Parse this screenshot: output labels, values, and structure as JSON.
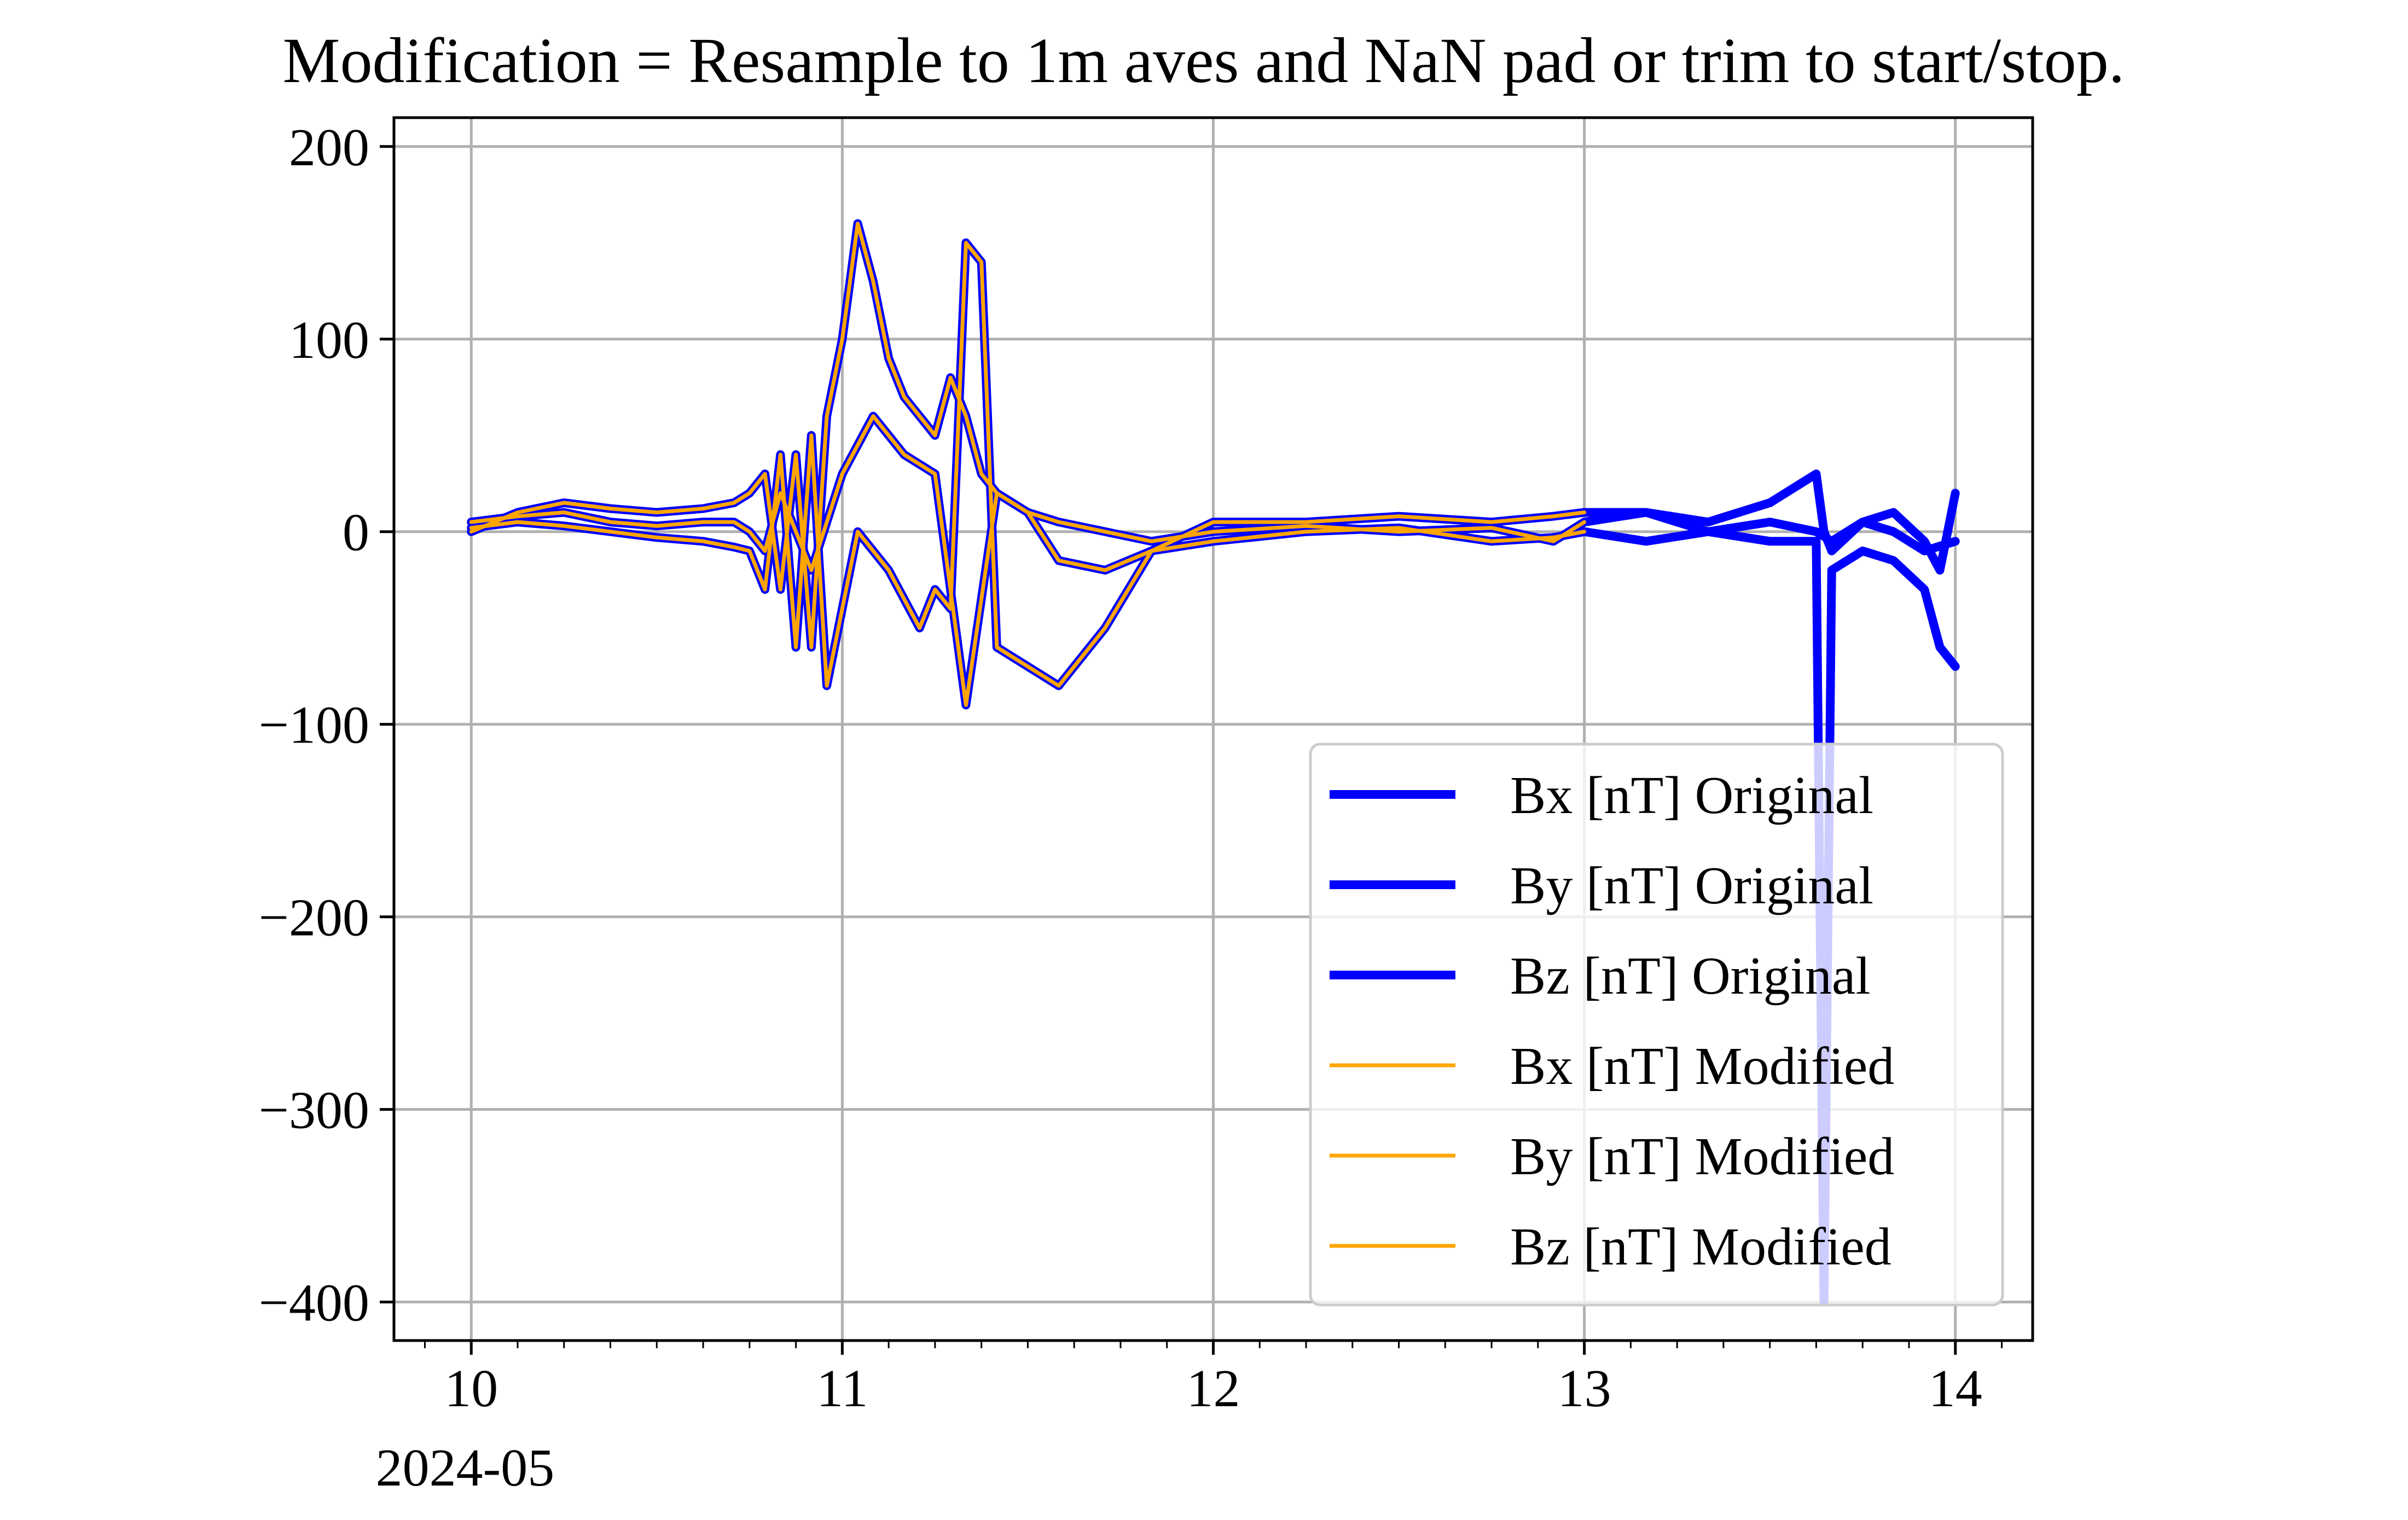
{
  "chart_data": {
    "type": "line",
    "title": "Modification = Resample to 1m aves and NaN pad or trim to start/stop.",
    "xlabel": "",
    "ylabel": "",
    "x_axis_kind": "date",
    "xlim": [
      "2024-05-09T19:00",
      "2024-05-14T05:00"
    ],
    "ylim": [
      -420,
      215
    ],
    "x_ticks": [
      {
        "value": "2024-05-10",
        "label": "10"
      },
      {
        "value": "2024-05-11",
        "label": "11"
      },
      {
        "value": "2024-05-12",
        "label": "12"
      },
      {
        "value": "2024-05-13",
        "label": "13"
      },
      {
        "value": "2024-05-14",
        "label": "14"
      }
    ],
    "x_offset_label": "2024-05",
    "y_ticks": [
      {
        "value": 200,
        "label": "200"
      },
      {
        "value": 100,
        "label": "100"
      },
      {
        "value": 0,
        "label": "0"
      },
      {
        "value": -100,
        "label": "−100"
      },
      {
        "value": -200,
        "label": "−200"
      },
      {
        "value": -300,
        "label": "−300"
      },
      {
        "value": -400,
        "label": "−400"
      }
    ],
    "grid": true,
    "legend_position": "lower-right",
    "colors": {
      "original": "#0000ff",
      "modified": "#ffa500"
    },
    "series": [
      {
        "name": "Bx [nT] Original",
        "color": "#0000ff",
        "style": "thick",
        "x": [
          "2024-05-10T00:00",
          "2024-05-10T03:00",
          "2024-05-10T06:00",
          "2024-05-10T09:00",
          "2024-05-10T12:00",
          "2024-05-10T15:00",
          "2024-05-10T17:00",
          "2024-05-10T18:00",
          "2024-05-10T19:00",
          "2024-05-10T20:00",
          "2024-05-10T21:00",
          "2024-05-10T22:00",
          "2024-05-10T23:00",
          "2024-05-11T00:00",
          "2024-05-11T01:00",
          "2024-05-11T02:00",
          "2024-05-11T03:00",
          "2024-05-11T04:00",
          "2024-05-11T05:00",
          "2024-05-11T06:00",
          "2024-05-11T07:00",
          "2024-05-11T08:00",
          "2024-05-11T09:00",
          "2024-05-11T10:00",
          "2024-05-11T12:00",
          "2024-05-11T14:00",
          "2024-05-11T17:00",
          "2024-05-11T20:00",
          "2024-05-12T00:00",
          "2024-05-12T06:00",
          "2024-05-12T12:00",
          "2024-05-12T18:00",
          "2024-05-12T22:00",
          "2024-05-13T00:00",
          "2024-05-13T04:00",
          "2024-05-13T08:00",
          "2024-05-13T12:00",
          "2024-05-13T14:00",
          "2024-05-13T15:00",
          "2024-05-13T15:30",
          "2024-05-13T16:00",
          "2024-05-13T18:00",
          "2024-05-13T20:00",
          "2024-05-13T22:00",
          "2024-05-13T23:00",
          "2024-05-14T00:00"
        ],
        "y": [
          0,
          10,
          15,
          12,
          10,
          12,
          15,
          20,
          30,
          -30,
          40,
          -60,
          60,
          100,
          160,
          130,
          90,
          70,
          60,
          50,
          80,
          60,
          30,
          20,
          10,
          -15,
          -20,
          -10,
          5,
          5,
          8,
          5,
          8,
          10,
          10,
          5,
          15,
          25,
          30,
          0,
          -10,
          5,
          10,
          -5,
          -20,
          20
        ]
      },
      {
        "name": "By [nT] Original",
        "color": "#0000ff",
        "style": "thick",
        "x": [
          "2024-05-10T00:00",
          "2024-05-10T03:00",
          "2024-05-10T06:00",
          "2024-05-10T09:00",
          "2024-05-10T12:00",
          "2024-05-10T15:00",
          "2024-05-10T17:00",
          "2024-05-10T18:00",
          "2024-05-10T19:00",
          "2024-05-10T20:00",
          "2024-05-10T21:00",
          "2024-05-10T22:00",
          "2024-05-10T23:00",
          "2024-05-11T01:00",
          "2024-05-11T03:00",
          "2024-05-11T05:00",
          "2024-05-11T06:00",
          "2024-05-11T07:00",
          "2024-05-11T08:00",
          "2024-05-11T09:00",
          "2024-05-11T10:00",
          "2024-05-11T12:00",
          "2024-05-11T14:00",
          "2024-05-11T17:00",
          "2024-05-11T20:00",
          "2024-05-12T00:00",
          "2024-05-12T06:00",
          "2024-05-12T12:00",
          "2024-05-12T18:00",
          "2024-05-12T22:00",
          "2024-05-13T00:00",
          "2024-05-13T04:00",
          "2024-05-13T08:00",
          "2024-05-13T12:00",
          "2024-05-13T15:00",
          "2024-05-13T15:30",
          "2024-05-13T16:00",
          "2024-05-13T18:00",
          "2024-05-13T20:00",
          "2024-05-13T22:00",
          "2024-05-13T23:00",
          "2024-05-14T00:00"
        ],
        "y": [
          2,
          5,
          3,
          0,
          -3,
          -5,
          -8,
          -10,
          -30,
          40,
          -60,
          50,
          -80,
          0,
          -20,
          -50,
          -30,
          -40,
          150,
          140,
          -60,
          -70,
          -80,
          -50,
          -10,
          -5,
          0,
          2,
          -5,
          -3,
          0,
          -5,
          0,
          -5,
          -5,
          -400,
          -20,
          -10,
          -15,
          -30,
          -60,
          -70
        ]
      },
      {
        "name": "Bz [nT] Original",
        "color": "#0000ff",
        "style": "thick",
        "x": [
          "2024-05-10T00:00",
          "2024-05-10T03:00",
          "2024-05-10T06:00",
          "2024-05-10T09:00",
          "2024-05-10T12:00",
          "2024-05-10T15:00",
          "2024-05-10T17:00",
          "2024-05-10T18:00",
          "2024-05-10T19:00",
          "2024-05-10T20:00",
          "2024-05-10T22:00",
          "2024-05-11T00:00",
          "2024-05-11T02:00",
          "2024-05-11T04:00",
          "2024-05-11T06:00",
          "2024-05-11T08:00",
          "2024-05-11T10:00",
          "2024-05-11T12:00",
          "2024-05-11T14:00",
          "2024-05-11T17:00",
          "2024-05-11T20:00",
          "2024-05-12T00:00",
          "2024-05-12T06:00",
          "2024-05-12T12:00",
          "2024-05-12T18:00",
          "2024-05-12T22:00",
          "2024-05-13T00:00",
          "2024-05-13T04:00",
          "2024-05-13T08:00",
          "2024-05-13T12:00",
          "2024-05-13T15:00",
          "2024-05-13T16:00",
          "2024-05-13T18:00",
          "2024-05-13T20:00",
          "2024-05-13T22:00",
          "2024-05-14T00:00"
        ],
        "y": [
          5,
          8,
          10,
          5,
          3,
          5,
          5,
          0,
          -10,
          20,
          -20,
          30,
          60,
          40,
          30,
          -90,
          20,
          10,
          5,
          0,
          -5,
          0,
          3,
          0,
          2,
          -5,
          5,
          10,
          0,
          5,
          0,
          -5,
          5,
          0,
          -10,
          -5
        ]
      },
      {
        "name": "Bx [nT] Modified",
        "color": "#ffa500",
        "style": "thin",
        "x": [
          "2024-05-10T00:00",
          "2024-05-10T03:00",
          "2024-05-10T06:00",
          "2024-05-10T09:00",
          "2024-05-10T12:00",
          "2024-05-10T15:00",
          "2024-05-10T17:00",
          "2024-05-10T18:00",
          "2024-05-10T19:00",
          "2024-05-10T20:00",
          "2024-05-10T21:00",
          "2024-05-10T22:00",
          "2024-05-10T23:00",
          "2024-05-11T00:00",
          "2024-05-11T01:00",
          "2024-05-11T02:00",
          "2024-05-11T03:00",
          "2024-05-11T04:00",
          "2024-05-11T05:00",
          "2024-05-11T06:00",
          "2024-05-11T07:00",
          "2024-05-11T08:00",
          "2024-05-11T09:00",
          "2024-05-11T10:00",
          "2024-05-11T12:00",
          "2024-05-11T14:00",
          "2024-05-11T17:00",
          "2024-05-11T20:00",
          "2024-05-12T00:00",
          "2024-05-12T06:00",
          "2024-05-12T12:00",
          "2024-05-12T18:00",
          "2024-05-12T22:00",
          "2024-05-13T00:00"
        ],
        "y": [
          0,
          10,
          15,
          12,
          10,
          12,
          15,
          20,
          30,
          -30,
          40,
          -60,
          60,
          100,
          160,
          130,
          90,
          70,
          60,
          50,
          80,
          60,
          30,
          20,
          10,
          -15,
          -20,
          -10,
          5,
          5,
          8,
          5,
          8,
          10
        ]
      },
      {
        "name": "By [nT] Modified",
        "color": "#ffa500",
        "style": "thin",
        "x": [
          "2024-05-10T00:00",
          "2024-05-10T03:00",
          "2024-05-10T06:00",
          "2024-05-10T09:00",
          "2024-05-10T12:00",
          "2024-05-10T15:00",
          "2024-05-10T17:00",
          "2024-05-10T18:00",
          "2024-05-10T19:00",
          "2024-05-10T20:00",
          "2024-05-10T21:00",
          "2024-05-10T22:00",
          "2024-05-10T23:00",
          "2024-05-11T01:00",
          "2024-05-11T03:00",
          "2024-05-11T05:00",
          "2024-05-11T06:00",
          "2024-05-11T07:00",
          "2024-05-11T08:00",
          "2024-05-11T09:00",
          "2024-05-11T10:00",
          "2024-05-11T12:00",
          "2024-05-11T14:00",
          "2024-05-11T17:00",
          "2024-05-11T20:00",
          "2024-05-12T00:00",
          "2024-05-12T06:00",
          "2024-05-12T12:00",
          "2024-05-12T18:00",
          "2024-05-12T22:00",
          "2024-05-13T00:00"
        ],
        "y": [
          2,
          5,
          3,
          0,
          -3,
          -5,
          -8,
          -10,
          -30,
          40,
          -60,
          50,
          -80,
          0,
          -20,
          -50,
          -30,
          -40,
          150,
          140,
          -60,
          -70,
          -80,
          -50,
          -10,
          -5,
          0,
          2,
          -5,
          -3,
          0
        ]
      },
      {
        "name": "Bz [nT] Modified",
        "color": "#ffa500",
        "style": "thin",
        "x": [
          "2024-05-10T00:00",
          "2024-05-10T03:00",
          "2024-05-10T06:00",
          "2024-05-10T09:00",
          "2024-05-10T12:00",
          "2024-05-10T15:00",
          "2024-05-10T17:00",
          "2024-05-10T18:00",
          "2024-05-10T19:00",
          "2024-05-10T20:00",
          "2024-05-10T22:00",
          "2024-05-11T00:00",
          "2024-05-11T02:00",
          "2024-05-11T04:00",
          "2024-05-11T06:00",
          "2024-05-11T08:00",
          "2024-05-11T10:00",
          "2024-05-11T12:00",
          "2024-05-11T14:00",
          "2024-05-11T17:00",
          "2024-05-11T20:00",
          "2024-05-12T00:00",
          "2024-05-12T06:00",
          "2024-05-12T12:00",
          "2024-05-12T18:00",
          "2024-05-12T22:00",
          "2024-05-13T00:00"
        ],
        "y": [
          5,
          8,
          10,
          5,
          3,
          5,
          5,
          0,
          -10,
          20,
          -20,
          30,
          60,
          40,
          30,
          -90,
          20,
          10,
          5,
          0,
          -5,
          0,
          3,
          0,
          2,
          -5,
          5
        ]
      }
    ]
  }
}
